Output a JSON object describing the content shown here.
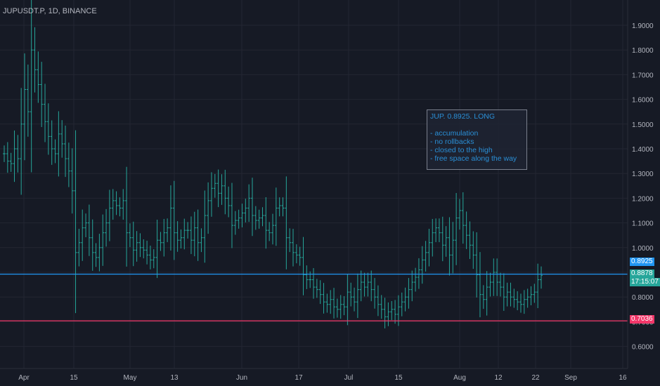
{
  "symbol": "JUPUSDT.P, 1D, BINANCE",
  "note": {
    "title": "JUP. 0.8925. LONG",
    "lines": [
      "- accumulation",
      "- no rollbacks",
      "- closed to the high",
      "- free space along the way"
    ]
  },
  "badges": {
    "entry": "0.8925",
    "last": "0.8878",
    "countdown": "17:15:07",
    "support": "0.7036"
  },
  "colors": {
    "background": "#161a25",
    "bars": "#26a69a",
    "entry_line": "#2196f3",
    "support_line": "#f23669",
    "grid": "#232632",
    "axis_text": "#b2b5be"
  },
  "chart_data": {
    "type": "ohlc",
    "title": "JUPUSDT.P, 1D, BINANCE",
    "ylim": [
      0.55,
      1.95
    ],
    "y_ticks": [
      "0.6000",
      "0.7000",
      "0.8000",
      "0.9000",
      "1.0000",
      "1.1000",
      "1.2000",
      "1.3000",
      "1.4000",
      "1.5000",
      "1.6000",
      "1.7000",
      "1.8000",
      "1.9000"
    ],
    "x_ticks": [
      "Apr",
      "15",
      "May",
      "13",
      "Jun",
      "17",
      "Jul",
      "15",
      "Aug",
      "12",
      "22",
      "Sep",
      "16"
    ],
    "horizontal_lines": [
      {
        "label": "entry",
        "value": 0.8925
      },
      {
        "label": "support",
        "value": 0.7036
      }
    ],
    "bars_close": [
      1.38,
      1.35,
      1.34,
      1.4,
      1.36,
      1.5,
      1.64,
      1.55,
      1.8,
      1.72,
      1.66,
      1.58,
      1.51,
      1.45,
      1.4,
      1.38,
      1.46,
      1.42,
      1.36,
      1.31,
      1.23,
      0.98,
      1.02,
      1.08,
      1.1,
      1.04,
      0.98,
      0.96,
      1.0,
      1.06,
      1.1,
      1.16,
      1.19,
      1.17,
      1.16,
      1.19,
      1.06,
      1.04,
      0.99,
      1.02,
      1.0,
      0.99,
      0.97,
      0.95,
      0.96,
      1.03,
      1.02,
      1.06,
      1.08,
      1.16,
      1.06,
      1.03,
      1.04,
      1.07,
      1.07,
      1.03,
      1.08,
      1.02,
      1.04,
      1.13,
      1.19,
      1.24,
      1.26,
      1.22,
      1.25,
      1.2,
      1.17,
      1.09,
      1.11,
      1.12,
      1.14,
      1.16,
      1.2,
      1.13,
      1.11,
      1.12,
      1.13,
      1.07,
      1.06,
      1.09,
      1.16,
      1.17,
      1.16,
      1.04,
      1.02,
      0.98,
      0.97,
      0.96,
      0.89,
      0.87,
      0.87,
      0.84,
      0.83,
      0.81,
      0.78,
      0.77,
      0.79,
      0.76,
      0.75,
      0.77,
      0.76,
      0.82,
      0.8,
      0.78,
      0.83,
      0.86,
      0.84,
      0.86,
      0.83,
      0.8,
      0.77,
      0.75,
      0.72,
      0.74,
      0.75,
      0.73,
      0.76,
      0.78,
      0.8,
      0.83,
      0.86,
      0.88,
      0.91,
      0.95,
      0.98,
      1.02,
      1.06,
      1.08,
      1.06,
      1.01,
      1.04,
      0.97,
      1.03,
      1.12,
      1.15,
      1.09,
      1.05,
      1.01,
      0.97,
      0.89,
      0.81,
      0.79,
      0.84,
      0.86,
      0.9,
      0.86,
      0.84,
      0.8,
      0.82,
      0.8,
      0.79,
      0.78,
      0.77,
      0.79,
      0.8,
      0.81,
      0.82,
      0.87,
      0.8878
    ]
  }
}
